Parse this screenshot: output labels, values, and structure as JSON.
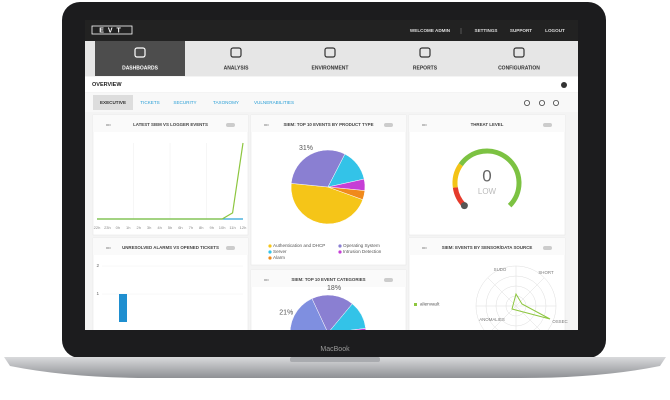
{
  "device": "MacBook",
  "header": {
    "logo": "EVT",
    "welcome": "WELCOME ADMIN",
    "links": [
      "SETTINGS",
      "SUPPORT",
      "LOGOUT"
    ]
  },
  "nav": [
    "DASHBOARDS",
    "ANALYSIS",
    "ENVIRONMENT",
    "REPORTS",
    "CONFIGURATION"
  ],
  "section": "OVERVIEW",
  "tabs": [
    "EXECUTIVE",
    "TICKETS",
    "SECURITY",
    "TAXONOMY",
    "VULNERABILITIES"
  ],
  "widgets": [
    {
      "title": "LATEST SIEM VS LOGGER EVENTS",
      "type": "line",
      "color": "#8dc63f",
      "categories": [
        "22h",
        "23h",
        "0h",
        "1h",
        "2h",
        "3h",
        "4h",
        "5h",
        "6h",
        "7h",
        "8h",
        "9h",
        "10h",
        "11h",
        "12h"
      ],
      "series": [
        {
          "color": "#2aa3d8",
          "values": [
            0,
            0,
            0,
            0,
            0,
            0,
            0,
            0,
            0,
            0,
            0,
            0,
            0,
            0,
            0
          ]
        },
        {
          "color": "#8dc63f",
          "values": [
            0,
            0,
            0,
            0,
            0,
            0,
            0,
            0,
            0,
            0,
            0,
            0,
            0,
            8,
            100
          ]
        }
      ],
      "ylim": [
        0,
        100
      ]
    },
    {
      "title": "SIEM: TOP 10 EVENTS BY PRODUCT TYPE",
      "type": "pie",
      "slices": [
        {
          "name": "Authentication and DHCP",
          "value": 46,
          "color": "#f5c518"
        },
        {
          "name": "Operating System",
          "value": 31,
          "label": "31%",
          "color": "#8a7fd2"
        },
        {
          "name": "Server",
          "value": 14,
          "color": "#33c3e8"
        },
        {
          "name": "Intrusion Detection",
          "value": 5,
          "color": "#c63ed6"
        },
        {
          "name": "Alarm",
          "value": 4,
          "color": "#f08a1c"
        }
      ]
    },
    {
      "title": "THREAT LEVEL",
      "type": "gauge",
      "value": 0,
      "label": "LOW"
    },
    {
      "title": "UNRESOLVED ALARMS VS OPENED TICKETS",
      "type": "bar",
      "color": "#1f8fd0",
      "values": [
        1
      ],
      "ylim": [
        0,
        2
      ],
      "yticks": [
        1,
        2
      ]
    },
    {
      "title": "SIEM: TOP 10 EVENT CATEGORIES",
      "type": "pie",
      "slices": [
        {
          "value": 18,
          "label": "18%",
          "color": "#8a7fd2"
        },
        {
          "value": 12,
          "color": "#33c3e8"
        },
        {
          "value": 6,
          "color": "#c63ed6"
        },
        {
          "value": 43,
          "color": "#f5c518"
        },
        {
          "value": 21,
          "label": "21%",
          "color": "#7f8fe0"
        }
      ]
    },
    {
      "title": "SIEM: EVENTS BY SENSOR/DATA SOURCE",
      "type": "radar",
      "axes": [
        "SUDO",
        "SHORT",
        "ANOMALIES",
        "OSSEC"
      ],
      "legend": "alienvault",
      "color": "#8dc63f"
    }
  ]
}
